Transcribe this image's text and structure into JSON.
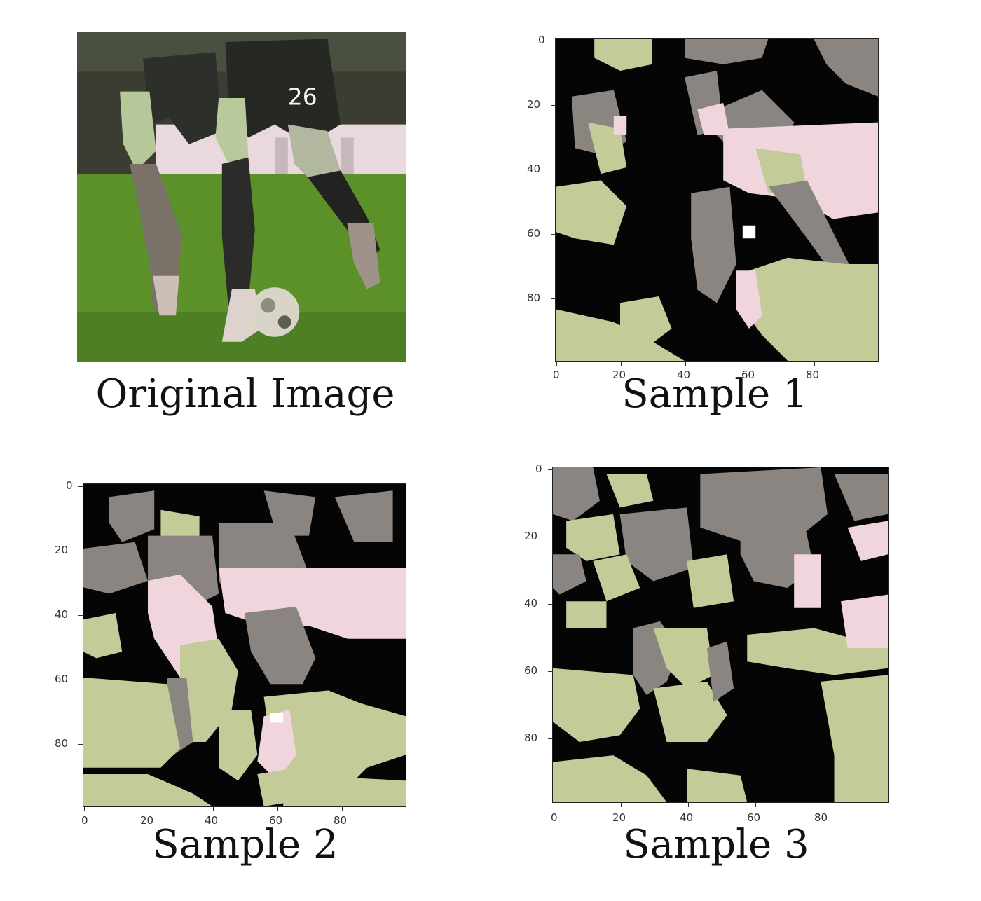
{
  "panels": [
    {
      "caption": "Original Image",
      "xticks": [],
      "yticks": []
    },
    {
      "caption": "Sample 1",
      "xticks": [
        "0",
        "20",
        "40",
        "60",
        "80"
      ],
      "yticks": [
        "0",
        "20",
        "40",
        "60",
        "80"
      ]
    },
    {
      "caption": "Sample 2",
      "xticks": [
        "0",
        "20",
        "40",
        "60",
        "80"
      ],
      "yticks": [
        "0",
        "20",
        "40",
        "60",
        "80"
      ]
    },
    {
      "caption": "Sample 3",
      "xticks": [
        "0",
        "20",
        "40",
        "60",
        "80"
      ],
      "yticks": [
        "0",
        "20",
        "40",
        "60",
        "80"
      ]
    }
  ],
  "colors": {
    "black": "#050505",
    "grass_green": "#5a8f2a",
    "pale_green": "#c3cc98",
    "gray": "#8a8580",
    "pink": "#f0d6dc",
    "dark_kit": "#2a2a2a"
  }
}
